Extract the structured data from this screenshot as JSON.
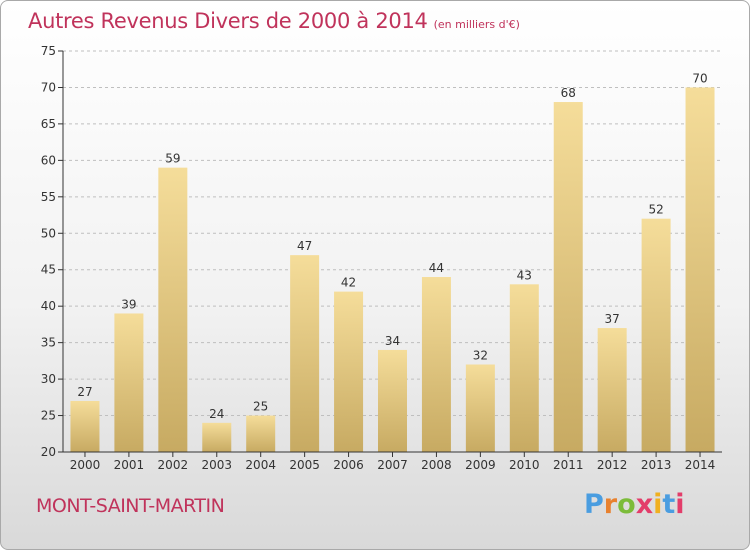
{
  "title": "Autres Revenus Divers de 2000 à 2014",
  "unit": "(en milliers d'€)",
  "city": "MONT-SAINT-MARTIN",
  "logo": {
    "text": "Proxiti",
    "letter_colors": [
      "#4a9de0",
      "#e8812e",
      "#7cbc3a",
      "#e33d6a",
      "#f0b020",
      "#4a9de0",
      "#e33d6a"
    ]
  },
  "colors": {
    "title": "#c0335b",
    "bar_light": "#f5dd9a",
    "bar_dark": "#c7aa62",
    "axis": "#333333",
    "grid": "#bfbfbf"
  },
  "chart_data": {
    "type": "bar",
    "categories": [
      "2000",
      "2001",
      "2002",
      "2003",
      "2004",
      "2005",
      "2006",
      "2007",
      "2008",
      "2009",
      "2010",
      "2011",
      "2012",
      "2013",
      "2014"
    ],
    "values": [
      27,
      39,
      59,
      24,
      25,
      47,
      42,
      34,
      44,
      32,
      43,
      68,
      37,
      52,
      70
    ],
    "ylim": [
      20,
      75
    ],
    "yticks": [
      20,
      25,
      30,
      35,
      40,
      45,
      50,
      55,
      60,
      65,
      70,
      75
    ],
    "grid": true,
    "xlabel": "",
    "ylabel": ""
  }
}
